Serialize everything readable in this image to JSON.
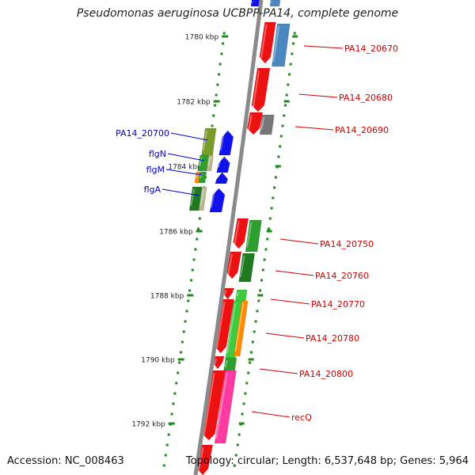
{
  "title": "Pseudomonas aeruginosa UCBPP-PA14, complete genome",
  "footer": {
    "accession": "Accession: NC_008463",
    "summary": "Topology: circular; Length: 6,537,648 bp; Genes: 5,964"
  },
  "scale": [
    {
      "kbp": 1780,
      "label": "1780 kbp"
    },
    {
      "kbp": 1782,
      "label": "1782 kbp"
    },
    {
      "kbp": 1784,
      "label": "1784 kbp"
    },
    {
      "kbp": 1786,
      "label": "1786 kbp"
    },
    {
      "kbp": 1788,
      "label": "1788 kbp"
    },
    {
      "kbp": 1790,
      "label": "1790 kbp"
    },
    {
      "kbp": 1792,
      "label": "1792 kbp"
    }
  ],
  "colors": {
    "backbone": "#8a8a8a",
    "scale_dots": "#1f8a1f",
    "forward_label": "#cc0000",
    "reverse_label": "#0000cc",
    "red": "#ee1111",
    "blue": "#1111ee",
    "steelblue": "#4a86c0",
    "green": "#2e9e2e",
    "darkgreen": "#1f7a1f",
    "lightgreen": "#3ecb3e",
    "olive": "#7a9a2a",
    "orange": "#ff8c00",
    "pink": "#ff3aa0",
    "gray": "#777777",
    "tan": "#b8b890"
  },
  "gene_labels": [
    {
      "text": "PA14_20670",
      "strand": "forward"
    },
    {
      "text": "PA14_20680",
      "strand": "forward"
    },
    {
      "text": "PA14_20690",
      "strand": "forward"
    },
    {
      "text": "PA14_20750",
      "strand": "forward"
    },
    {
      "text": "PA14_20760",
      "strand": "forward"
    },
    {
      "text": "PA14_20770",
      "strand": "forward"
    },
    {
      "text": "PA14_20780",
      "strand": "forward"
    },
    {
      "text": "PA14_20800",
      "strand": "forward"
    },
    {
      "text": "recQ",
      "strand": "forward"
    },
    {
      "text": "PA14_20700",
      "strand": "reverse"
    },
    {
      "text": "flgN",
      "strand": "reverse"
    },
    {
      "text": "flgM",
      "strand": "reverse"
    },
    {
      "text": "flgA",
      "strand": "reverse"
    }
  ]
}
